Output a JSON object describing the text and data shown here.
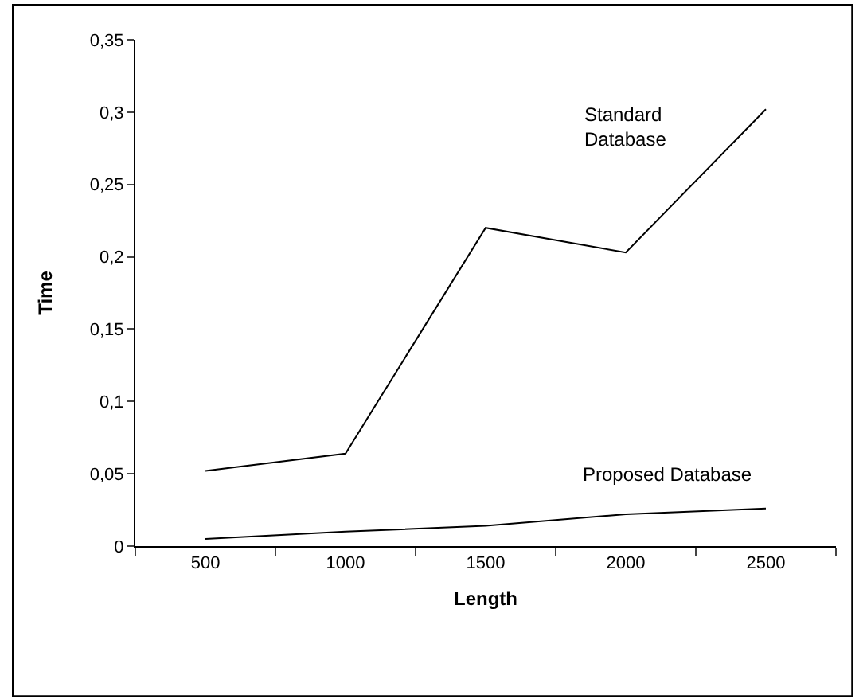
{
  "chart_data": {
    "type": "line",
    "xlabel": "Length",
    "ylabel": "Time",
    "categories": [
      "500",
      "1000",
      "1500",
      "2000",
      "2500"
    ],
    "series": [
      {
        "name": "Standard Database",
        "color": "#000000",
        "values": [
          0.052,
          0.064,
          0.22,
          0.203,
          0.302
        ]
      },
      {
        "name": "Proposed Database",
        "color": "#000000",
        "values": [
          0.005,
          0.01,
          0.014,
          0.022,
          0.026
        ]
      }
    ],
    "ylim": [
      0,
      0.35
    ],
    "yticks": [
      0,
      {
        "value": 0.05,
        "label": "0,05"
      },
      {
        "value": 0.1,
        "label": "0,1"
      },
      {
        "value": 0.15,
        "label": "0,15"
      },
      {
        "value": 0.2,
        "label": "0,2"
      },
      {
        "value": 0.25,
        "label": "0,25"
      },
      {
        "value": 0.3,
        "label": "0,3"
      },
      {
        "value": 0.35,
        "label": "0,35"
      }
    ],
    "legend": false,
    "marker": "none",
    "line_style": "solid"
  }
}
